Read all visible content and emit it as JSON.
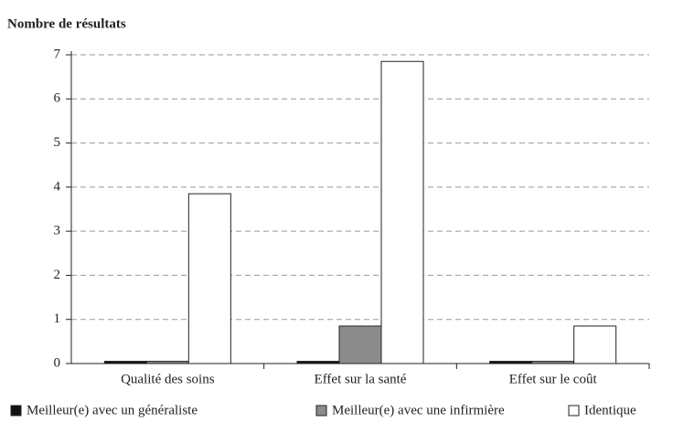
{
  "chart_data": {
    "type": "bar",
    "y_label": "Nombre de résultats",
    "categories": [
      "Qualité des soins",
      "Effet sur la santé",
      "Effet sur le coût"
    ],
    "series": [
      {
        "name": "Meilleur(e) avec un généraliste",
        "color": "#111111",
        "values": [
          0.05,
          0.05,
          0.05
        ]
      },
      {
        "name": "Meilleur(e) avec une infirmière",
        "color": "#8c8c8c",
        "values": [
          0.05,
          0.85,
          0.05
        ]
      },
      {
        "name": "Identique",
        "color": "#ffffff",
        "values": [
          3.85,
          6.85,
          0.85
        ]
      }
    ],
    "ylim": [
      0,
      7
    ],
    "yticks": [
      0,
      1,
      2,
      3,
      4,
      5,
      6,
      7
    ],
    "grid": true,
    "legend": "bottom"
  }
}
